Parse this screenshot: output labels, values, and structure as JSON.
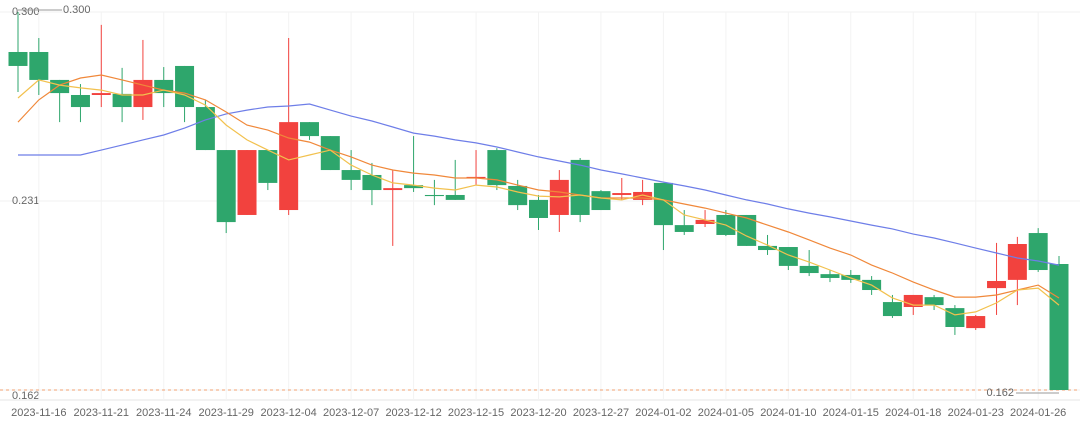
{
  "chart_data": {
    "type": "candlestick",
    "x": [
      null,
      "2023-11-16",
      null,
      null,
      "2023-11-21",
      null,
      null,
      "2023-11-24",
      null,
      null,
      "2023-11-29",
      null,
      null,
      "2023-12-04",
      null,
      null,
      "2023-12-07",
      null,
      null,
      "2023-12-12",
      null,
      null,
      "2023-12-15",
      null,
      null,
      "2023-12-20",
      null,
      null,
      "2023-12-27",
      null,
      null,
      "2024-01-02",
      null,
      null,
      "2024-01-05",
      null,
      null,
      "2024-01-10",
      null,
      null,
      "2024-01-15",
      null,
      null,
      "2024-01-18",
      null,
      null,
      "2024-01-23",
      null,
      null,
      "2024-01-26",
      null
    ],
    "open": [
      0.2854,
      0.2854,
      0.2752,
      0.2697,
      0.2697,
      0.2701,
      0.2653,
      0.2752,
      0.2803,
      0.2653,
      0.2496,
      0.2259,
      0.2496,
      0.2277,
      0.2598,
      0.2547,
      0.2423,
      0.2405,
      0.235,
      0.2368,
      0.2332,
      0.2332,
      0.2394,
      0.2496,
      0.2365,
      0.2314,
      0.2259,
      0.246,
      0.2346,
      0.2332,
      0.2314,
      0.2376,
      0.2222,
      0.2226,
      0.2259,
      0.2259,
      0.2146,
      0.2142,
      0.2073,
      0.2043,
      0.204,
      0.2022,
      0.1941,
      0.1923,
      0.1959,
      0.1919,
      0.1846,
      0.1992,
      0.2022,
      0.2193,
      0.208
    ],
    "high": [
      0.3,
      0.2905,
      0.2752,
      0.2737,
      0.2953,
      0.2796,
      0.2898,
      0.2799,
      0.2803,
      0.2679,
      0.2496,
      0.2496,
      0.2496,
      0.2905,
      0.2598,
      0.2547,
      0.2496,
      0.2449,
      0.2423,
      0.2547,
      0.2387,
      0.246,
      0.2496,
      0.2503,
      0.2387,
      0.2332,
      0.2423,
      0.2467,
      0.235,
      0.2394,
      0.2387,
      0.2376,
      0.2277,
      0.2277,
      0.2277,
      0.2259,
      0.2186,
      0.2142,
      0.2131,
      0.2058,
      0.2058,
      0.2036,
      0.1967,
      0.1967,
      0.1967,
      0.193,
      0.1894,
      0.2157,
      0.2179,
      0.2211,
      0.2109
    ],
    "low": [
      0.2708,
      0.2697,
      0.2598,
      0.2598,
      0.2653,
      0.2598,
      0.2606,
      0.2653,
      0.2598,
      0.2496,
      0.2193,
      0.2259,
      0.235,
      0.2259,
      0.2533,
      0.2423,
      0.235,
      0.2295,
      0.2146,
      0.2343,
      0.2295,
      0.2314,
      0.2368,
      0.235,
      0.2277,
      0.2204,
      0.2197,
      0.2233,
      0.2277,
      0.2314,
      0.2295,
      0.2131,
      0.2186,
      0.2215,
      0.2182,
      0.2146,
      0.2113,
      0.2058,
      0.2036,
      0.2014,
      0.2011,
      0.1967,
      0.1883,
      0.1894,
      0.1912,
      0.1821,
      0.1839,
      0.1894,
      0.193,
      0.2051,
      0.162
    ],
    "close": [
      0.2803,
      0.2752,
      0.2704,
      0.2653,
      0.2704,
      0.2653,
      0.2752,
      0.2704,
      0.2653,
      0.2496,
      0.2233,
      0.2496,
      0.2376,
      0.2598,
      0.2547,
      0.2423,
      0.2387,
      0.235,
      0.2357,
      0.2357,
      0.2328,
      0.2314,
      0.2398,
      0.2368,
      0.2295,
      0.2248,
      0.2387,
      0.2259,
      0.2277,
      0.2339,
      0.2343,
      0.2222,
      0.2197,
      0.2241,
      0.2186,
      0.2146,
      0.2131,
      0.2073,
      0.2047,
      0.2029,
      0.2022,
      0.1985,
      0.189,
      0.1967,
      0.193,
      0.185,
      0.189,
      0.2018,
      0.2153,
      0.2058,
      0.162
    ],
    "up_color": "#f2423e",
    "down_color": "#2ea66c",
    "series": [
      {
        "color": "#6e7ee8",
        "values": [
          0.2478,
          0.2478,
          0.2478,
          0.2478,
          0.2496,
          0.2514,
          0.2533,
          0.2551,
          0.2576,
          0.2606,
          0.2628,
          0.2642,
          0.2653,
          0.2657,
          0.2664,
          0.2642,
          0.262,
          0.2602,
          0.258,
          0.2558,
          0.2547,
          0.2533,
          0.2522,
          0.2507,
          0.2489,
          0.2471,
          0.2456,
          0.2441,
          0.2423,
          0.2409,
          0.2394,
          0.2379,
          0.2365,
          0.235,
          0.2332,
          0.2314,
          0.2299,
          0.2281,
          0.2266,
          0.2252,
          0.2237,
          0.2222,
          0.2208,
          0.2189,
          0.2175,
          0.2157,
          0.2138,
          0.212,
          0.2102,
          0.2091,
          0.2076
        ]
      },
      {
        "color": "#f0883a",
        "values": [
          0.2598,
          0.2679,
          0.2733,
          0.2759,
          0.277,
          0.2752,
          0.2733,
          0.2715,
          0.2704,
          0.2679,
          0.2635,
          0.2587,
          0.2569,
          0.254,
          0.2525,
          0.2496,
          0.2471,
          0.2441,
          0.2423,
          0.2412,
          0.2405,
          0.2394,
          0.2394,
          0.2387,
          0.2368,
          0.235,
          0.2343,
          0.2332,
          0.2321,
          0.2321,
          0.2321,
          0.2314,
          0.2299,
          0.2284,
          0.2266,
          0.2248,
          0.2222,
          0.2197,
          0.2168,
          0.2138,
          0.2113,
          0.2076,
          0.2047,
          0.2014,
          0.1985,
          0.1959,
          0.1959,
          0.1967,
          0.1985,
          0.2003,
          0.1956
        ]
      },
      {
        "color": "#f2c14e",
        "values": [
          0.2686,
          0.2752,
          0.2733,
          0.2723,
          0.2715,
          0.2697,
          0.2697,
          0.2715,
          0.2697,
          0.266,
          0.2587,
          0.2533,
          0.2496,
          0.246,
          0.2478,
          0.2496,
          0.2441,
          0.2405,
          0.2376,
          0.2368,
          0.2357,
          0.235,
          0.2368,
          0.2361,
          0.2343,
          0.2328,
          0.2325,
          0.2332,
          0.2321,
          0.2314,
          0.2332,
          0.2314,
          0.2259,
          0.2241,
          0.2222,
          0.2182,
          0.2149,
          0.2113,
          0.2087,
          0.2058,
          0.2029,
          0.2003,
          0.1956,
          0.193,
          0.193,
          0.1894,
          0.1905,
          0.1938,
          0.1985,
          0.1992,
          0.193
        ]
      }
    ],
    "ylim": [
      0.162,
      0.3
    ],
    "yticks": [
      {
        "value": 0.3,
        "label": "0.300"
      },
      {
        "value": 0.231,
        "label": "0.231"
      },
      {
        "value": 0.162,
        "label": "0.162"
      }
    ],
    "annotations": [
      {
        "value": 0.3,
        "label": "0.300"
      },
      {
        "value": 0.162,
        "label": "0.162"
      }
    ],
    "grid": true
  }
}
